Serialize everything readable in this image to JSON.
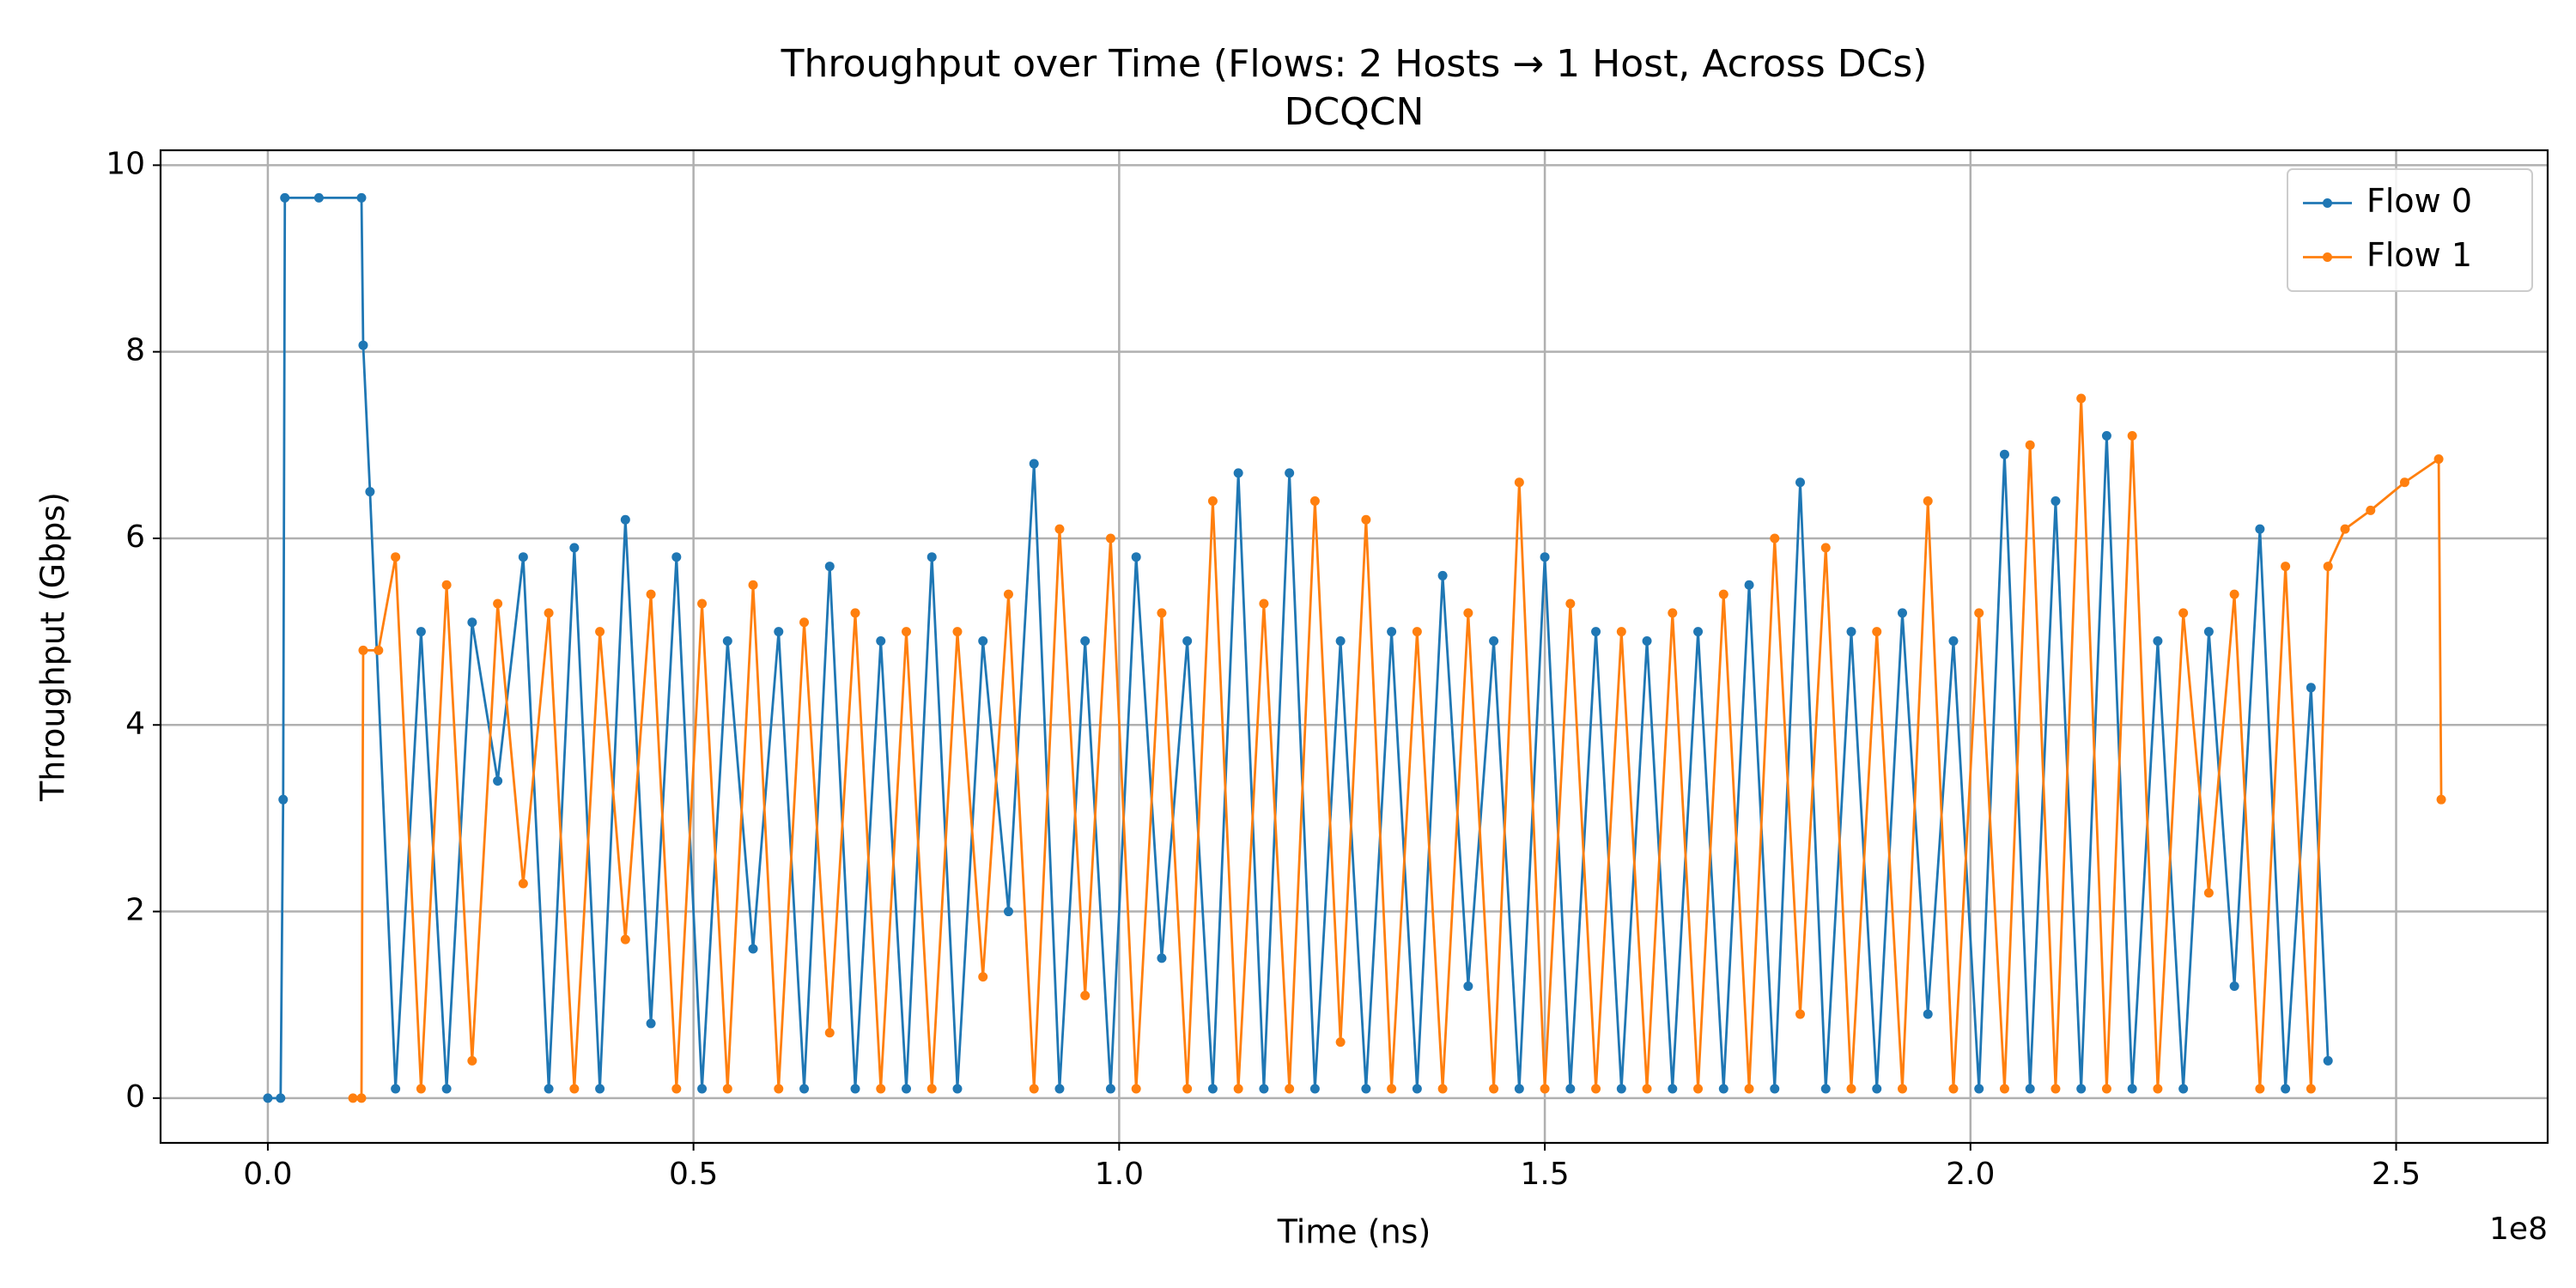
{
  "chart_data": {
    "type": "line",
    "title": "Throughput over Time (Flows: 2 Hosts → 1 Host, Across DCs)",
    "subtitle": "DCQCN",
    "x_label": "Time (ns)",
    "y_label": "Throughput (Gbps)",
    "x_offset_label": "1e8",
    "xlim": [
      -12600000,
      267800000
    ],
    "ylim": [
      -0.48,
      10.16
    ],
    "xticks": [
      {
        "value": 0,
        "label": "0.0"
      },
      {
        "value": 50000000,
        "label": "0.5"
      },
      {
        "value": 100000000,
        "label": "1.0"
      },
      {
        "value": 150000000,
        "label": "1.5"
      },
      {
        "value": 200000000,
        "label": "2.0"
      },
      {
        "value": 250000000,
        "label": "2.5"
      }
    ],
    "yticks": [
      0,
      2,
      4,
      6,
      8,
      10
    ],
    "grid": true,
    "legend": "upper right",
    "series": [
      {
        "name": "Flow 0",
        "color": "#1f77b4",
        "x": [
          0,
          1500000,
          1800000,
          2000000,
          6000000,
          11000000,
          11200000,
          12000000,
          15000000,
          18000000,
          21000000,
          24000000,
          27000000,
          30000000,
          33000000,
          36000000,
          39000000,
          42000000,
          45000000,
          48000000,
          51000000,
          54000000,
          57000000,
          60000000,
          63000000,
          66000000,
          69000000,
          72000000,
          75000000,
          78000000,
          81000000,
          84000000,
          87000000,
          90000000,
          93000000,
          96000000,
          99000000,
          102000000,
          105000000,
          108000000,
          111000000,
          114000000,
          117000000,
          120000000,
          123000000,
          126000000,
          129000000,
          132000000,
          135000000,
          138000000,
          141000000,
          144000000,
          147000000,
          150000000,
          153000000,
          156000000,
          159000000,
          162000000,
          165000000,
          168000000,
          171000000,
          174000000,
          177000000,
          180000000,
          183000000,
          186000000,
          189000000,
          192000000,
          195000000,
          198000000,
          201000000,
          204000000,
          207000000,
          210000000,
          213000000,
          216000000,
          219000000,
          222000000,
          225000000,
          228000000,
          231000000,
          234000000,
          237000000,
          240000000,
          242000000
        ],
        "values": [
          0,
          0,
          3.2,
          9.65,
          9.65,
          9.65,
          8.07,
          6.5,
          0.1,
          5.0,
          0.1,
          5.1,
          3.4,
          5.8,
          0.1,
          5.9,
          0.1,
          6.2,
          0.8,
          5.8,
          0.1,
          4.9,
          1.6,
          5.0,
          0.1,
          5.7,
          0.1,
          4.9,
          0.1,
          5.8,
          0.1,
          4.9,
          2.0,
          6.8,
          0.1,
          4.9,
          0.1,
          5.8,
          1.5,
          4.9,
          0.1,
          6.7,
          0.1,
          6.7,
          0.1,
          4.9,
          0.1,
          5.0,
          0.1,
          5.6,
          1.2,
          4.9,
          0.1,
          5.8,
          0.1,
          5.0,
          0.1,
          4.9,
          0.1,
          5.0,
          0.1,
          5.5,
          0.1,
          6.6,
          0.1,
          5.0,
          0.1,
          5.2,
          0.9,
          4.9,
          0.1,
          6.9,
          0.1,
          6.4,
          0.1,
          7.1,
          0.1,
          4.9,
          0.1,
          5.0,
          1.2,
          6.1,
          0.1,
          4.4,
          0.4
        ]
      },
      {
        "name": "Flow 1",
        "color": "#ff7f0e",
        "x": [
          10000000,
          11000000,
          11200000,
          13000000,
          15000000,
          18000000,
          21000000,
          24000000,
          27000000,
          30000000,
          33000000,
          36000000,
          39000000,
          42000000,
          45000000,
          48000000,
          51000000,
          54000000,
          57000000,
          60000000,
          63000000,
          66000000,
          69000000,
          72000000,
          75000000,
          78000000,
          81000000,
          84000000,
          87000000,
          90000000,
          93000000,
          96000000,
          99000000,
          102000000,
          105000000,
          108000000,
          111000000,
          114000000,
          117000000,
          120000000,
          123000000,
          126000000,
          129000000,
          132000000,
          135000000,
          138000000,
          141000000,
          144000000,
          147000000,
          150000000,
          153000000,
          156000000,
          159000000,
          162000000,
          165000000,
          168000000,
          171000000,
          174000000,
          177000000,
          180000000,
          183000000,
          186000000,
          189000000,
          192000000,
          195000000,
          198000000,
          201000000,
          204000000,
          207000000,
          210000000,
          213000000,
          216000000,
          219000000,
          222000000,
          225000000,
          228000000,
          231000000,
          234000000,
          237000000,
          240000000,
          242000000,
          244000000,
          247000000,
          251000000,
          255000000,
          255300000
        ],
        "values": [
          0,
          0,
          4.8,
          4.8,
          5.8,
          0.1,
          5.5,
          0.4,
          5.3,
          2.3,
          5.2,
          0.1,
          5.0,
          1.7,
          5.4,
          0.1,
          5.3,
          0.1,
          5.5,
          0.1,
          5.1,
          0.7,
          5.2,
          0.1,
          5.0,
          0.1,
          5.0,
          1.3,
          5.4,
          0.1,
          6.1,
          1.1,
          6.0,
          0.1,
          5.2,
          0.1,
          6.4,
          0.1,
          5.3,
          0.1,
          6.4,
          0.6,
          6.2,
          0.1,
          5.0,
          0.1,
          5.2,
          0.1,
          6.6,
          0.1,
          5.3,
          0.1,
          5.0,
          0.1,
          5.2,
          0.1,
          5.4,
          0.1,
          6.0,
          0.9,
          5.9,
          0.1,
          5.0,
          0.1,
          6.4,
          0.1,
          5.2,
          0.1,
          7.0,
          0.1,
          7.5,
          0.1,
          7.1,
          0.1,
          5.2,
          2.2,
          5.4,
          0.1,
          5.7,
          0.1,
          5.7,
          6.1,
          6.3,
          6.6,
          6.85,
          3.2
        ]
      }
    ]
  }
}
